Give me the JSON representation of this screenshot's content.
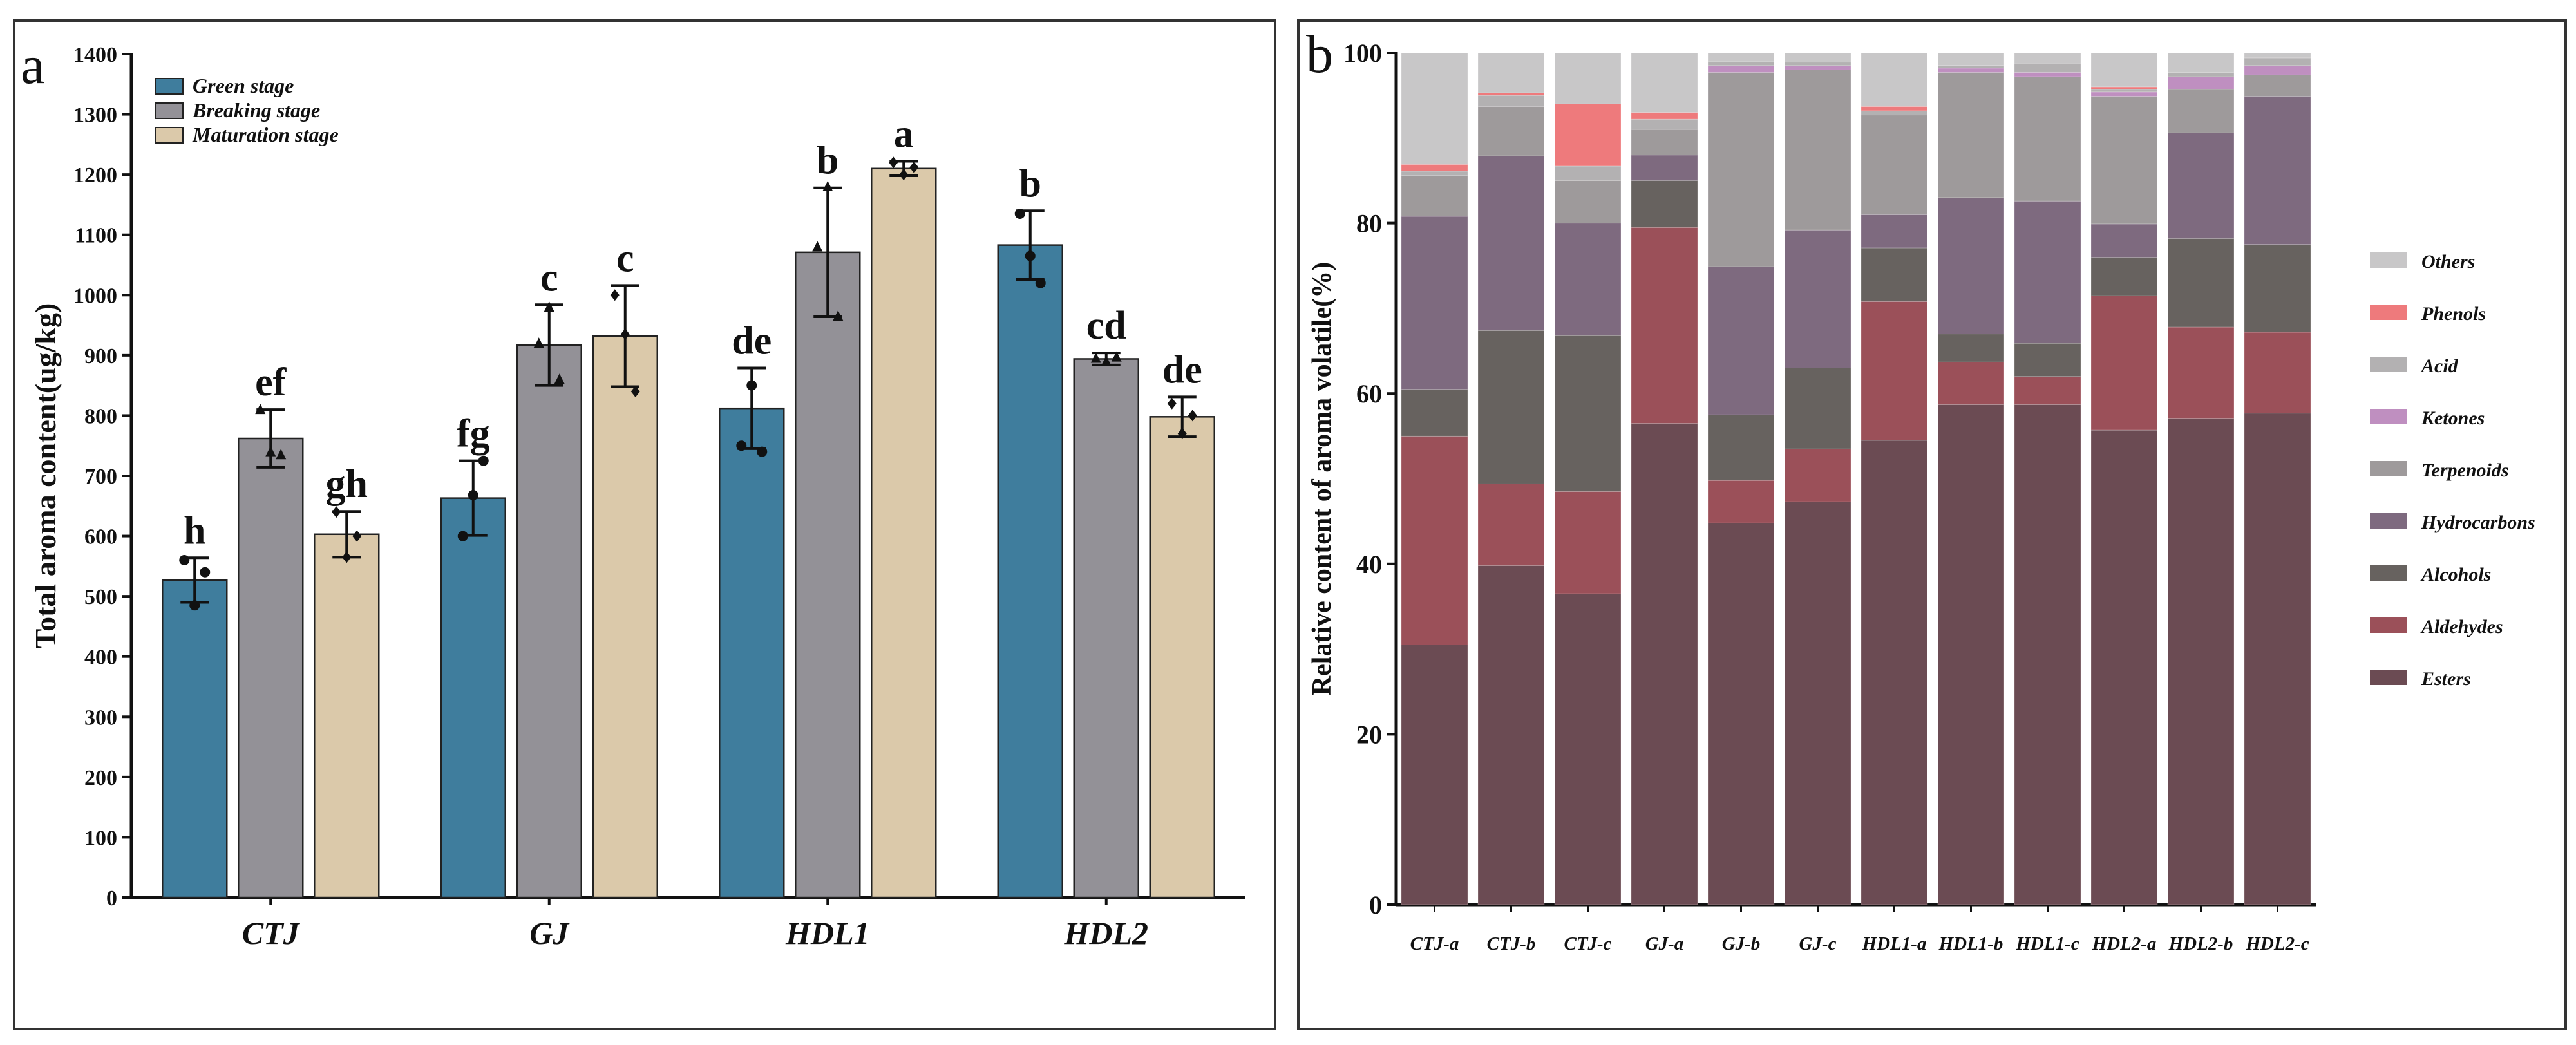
{
  "chart_data": [
    {
      "panel_label": "a",
      "type": "bar",
      "ylabel": "Total aroma content(ug/kg)",
      "ylim": [
        0,
        1400
      ],
      "yticks": [
        0,
        100,
        200,
        300,
        400,
        500,
        600,
        700,
        800,
        900,
        1000,
        1100,
        1200,
        1300,
        1400
      ],
      "categories": [
        "CTJ",
        "GJ",
        "HDL1",
        "HDL2"
      ],
      "legend_position": "top-left",
      "series": [
        {
          "name": "Green stage",
          "color": "#3f7d9d",
          "values": [
            527,
            663,
            812,
            1083
          ],
          "errors": [
            37,
            62,
            67,
            57
          ],
          "letters": [
            "h",
            "fg",
            "de",
            "b"
          ],
          "points": [
            [
              560,
              485,
              540
            ],
            [
              600,
              668,
              725
            ],
            [
              750,
              850,
              740
            ],
            [
              1135,
              1065,
              1020
            ]
          ],
          "marker": "circle"
        },
        {
          "name": "Breaking stage",
          "color": "#939197",
          "values": [
            762,
            917,
            1071,
            894
          ],
          "errors": [
            48,
            67,
            107,
            10
          ],
          "letters": [
            "ef",
            "c",
            "b",
            "cd"
          ],
          "points": [
            [
              810,
              740,
              735
            ],
            [
              920,
              980,
              860
            ],
            [
              1080,
              1180,
              965
            ],
            [
              895,
              890,
              897
            ]
          ],
          "marker": "triangle"
        },
        {
          "name": "Maturation stage",
          "color": "#dbc9aa",
          "values": [
            603,
            932,
            1210,
            798
          ],
          "errors": [
            38,
            84,
            12,
            33
          ],
          "letters": [
            "gh",
            "c",
            "a",
            "de"
          ],
          "points": [
            [
              640,
              565,
              600
            ],
            [
              1000,
              935,
              840
            ],
            [
              1220,
              1200,
              1212
            ],
            [
              820,
              770,
              800
            ]
          ],
          "marker": "diamond"
        }
      ]
    },
    {
      "panel_label": "b",
      "type": "bar",
      "stacked": true,
      "ylabel": "Relative content of aroma volatile(%)",
      "ylim": [
        0,
        100
      ],
      "yticks": [
        0,
        20,
        40,
        60,
        80,
        100
      ],
      "categories": [
        "CTJ-a",
        "CTJ-b",
        "CTJ-c",
        "GJ-a",
        "GJ-b",
        "GJ-c",
        "HDL1-a",
        "HDL1-b",
        "HDL1-c",
        "HDL2-a",
        "HDL2-b",
        "HDL2-c"
      ],
      "legend_position": "right",
      "legend_order": [
        "Others",
        "Phenols",
        "Acid",
        "Ketones",
        "Terpenoids",
        "Hydrocarbons",
        "Alcohols",
        "Aldehydes",
        "Esters"
      ],
      "series": [
        {
          "name": "Esters",
          "color": "#6b4b53",
          "values": [
            30.5,
            39.8,
            36.5,
            56.5,
            44.8,
            47.3,
            54.5,
            58.7,
            58.7,
            55.7,
            57.1,
            57.7
          ]
        },
        {
          "name": "Aldehydes",
          "color": "#9b5059",
          "values": [
            24.5,
            9.6,
            12.0,
            23.0,
            5.0,
            6.2,
            16.3,
            5.0,
            3.3,
            15.8,
            10.7,
            9.5
          ]
        },
        {
          "name": "Alcohols",
          "color": "#67625f",
          "values": [
            5.5,
            18.0,
            18.3,
            5.5,
            7.7,
            9.5,
            6.3,
            3.3,
            3.9,
            4.5,
            10.4,
            10.3
          ]
        },
        {
          "name": "Hydrocarbons",
          "color": "#7e6a7f",
          "values": [
            20.3,
            20.5,
            13.2,
            3.0,
            17.4,
            16.2,
            3.9,
            16.0,
            16.7,
            3.9,
            12.4,
            17.4
          ]
        },
        {
          "name": "Terpenoids",
          "color": "#9e9a9b",
          "values": [
            4.8,
            5.8,
            5.0,
            3.0,
            22.8,
            18.8,
            11.7,
            14.7,
            14.6,
            15.0,
            5.1,
            2.5
          ]
        },
        {
          "name": "Ketones",
          "color": "#bf8fc0",
          "values": [
            0.0,
            0.0,
            0.0,
            0.0,
            0.8,
            0.5,
            0.0,
            0.5,
            0.5,
            0.5,
            1.5,
            1.1
          ]
        },
        {
          "name": "Acid",
          "color": "#b3b1b2",
          "values": [
            0.5,
            1.3,
            1.7,
            1.2,
            0.5,
            0.4,
            0.5,
            0.3,
            1.0,
            0.3,
            0.5,
            0.9
          ]
        },
        {
          "name": "Phenols",
          "color": "#ee7a7c",
          "values": [
            0.8,
            0.3,
            7.3,
            0.8,
            0.0,
            0.0,
            0.5,
            0.0,
            0.0,
            0.3,
            0.0,
            0.0
          ]
        },
        {
          "name": "Others",
          "color": "#c8c7c8",
          "values": [
            13.1,
            4.7,
            6.0,
            7.0,
            1.0,
            1.1,
            6.3,
            1.5,
            1.3,
            4.0,
            2.3,
            0.6
          ]
        }
      ]
    }
  ]
}
